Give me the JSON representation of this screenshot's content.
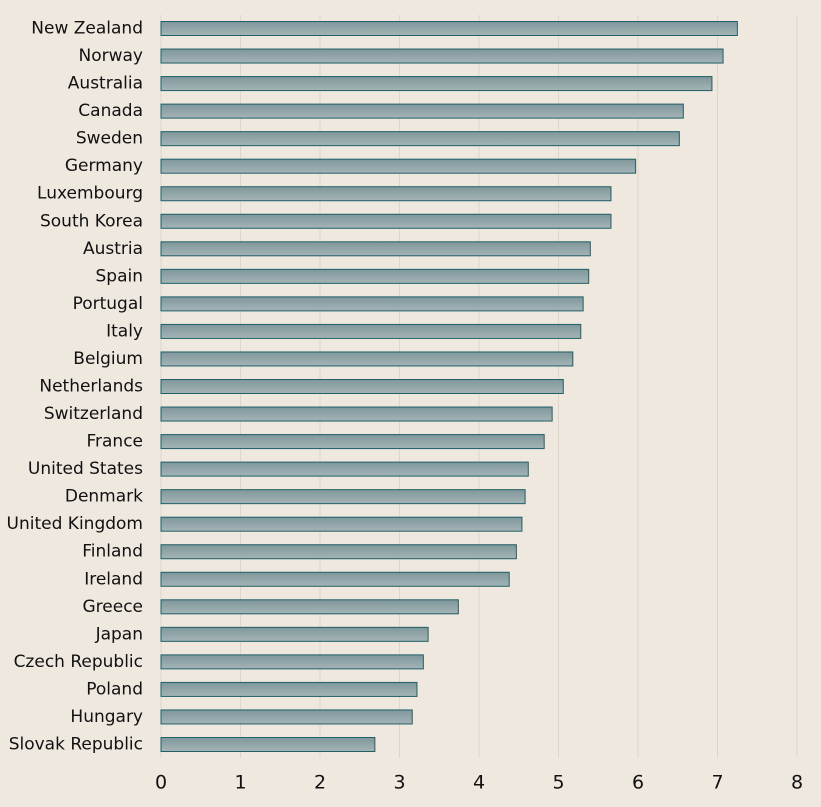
{
  "chart_data": {
    "type": "hbar",
    "categories": [
      "New Zealand",
      "Norway",
      "Australia",
      "Canada",
      "Sweden",
      "Germany",
      "Luxembourg",
      "South Korea",
      "Austria",
      "Spain",
      "Portugal",
      "Italy",
      "Belgium",
      "Netherlands",
      "Switzerland",
      "France",
      "United States",
      "Denmark",
      "United Kingdom",
      "Finland",
      "Ireland",
      "Greece",
      "Japan",
      "Czech Republic",
      "Poland",
      "Hungary",
      "Slovak Republic"
    ],
    "values": [
      7.25,
      7.07,
      6.93,
      6.57,
      6.52,
      5.97,
      5.66,
      5.66,
      5.4,
      5.38,
      5.31,
      5.28,
      5.18,
      5.06,
      4.92,
      4.82,
      4.62,
      4.58,
      4.54,
      4.47,
      4.38,
      3.74,
      3.36,
      3.3,
      3.22,
      3.16,
      2.69
    ],
    "color": "#8ea3a7",
    "xlim": [
      0,
      8
    ],
    "xticks": [
      0,
      1,
      2,
      3,
      4,
      5,
      6,
      7,
      8
    ],
    "grid": true
  }
}
